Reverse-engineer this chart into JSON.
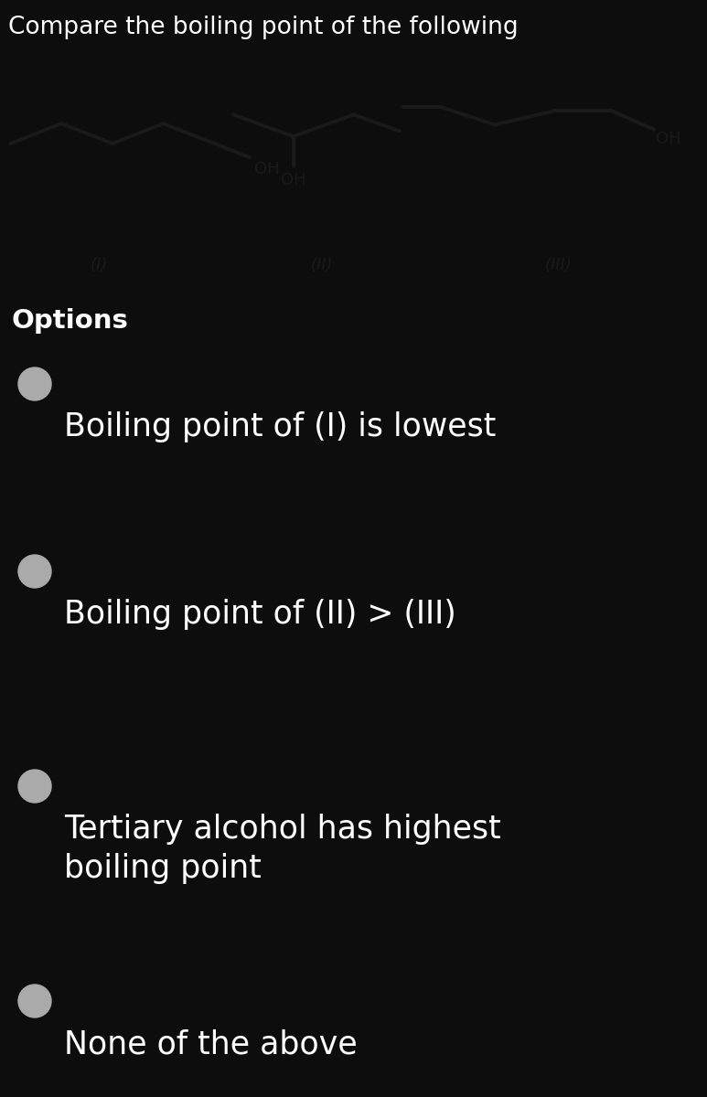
{
  "title": "Compare the boiling point of the following",
  "title_bg": "#0d0d0d",
  "title_color": "#ffffff",
  "title_fontsize": 19,
  "chem_bg": "#b2b2b2",
  "options_bg": "#0d0d0d",
  "options_color": "#ffffff",
  "options_label": "Options",
  "options_label_fontsize": 21,
  "option_fontsize": 25,
  "bullet_color": "#aaaaaa",
  "line_color": "#1a1a1a",
  "options": [
    "Boiling point of (I) is lowest",
    "Boiling point of (II) > (III)",
    "Tertiary alcohol has highest\nboiling point",
    "None of the above"
  ],
  "compound_labels": [
    "(I)",
    "(II)",
    "(III)"
  ],
  "compound_label_color": "#1a1a1a",
  "compound_label_fontsize": 13
}
